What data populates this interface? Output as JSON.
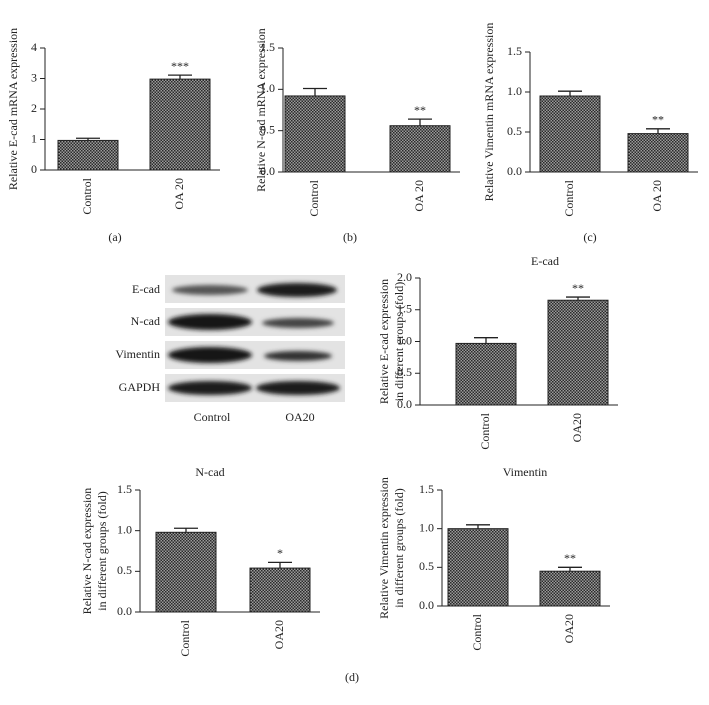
{
  "chart_data": [
    {
      "type": "bar",
      "panel_label": "(a)",
      "ylabel": [
        "Relative E-cad mRNA expression"
      ],
      "categories": [
        "Control",
        "OA 20"
      ],
      "values": [
        0.97,
        2.98
      ],
      "errors": [
        0.07,
        0.13
      ],
      "annotations": [
        null,
        "***"
      ],
      "ylim": [
        0,
        4
      ],
      "yticks": [
        0,
        1,
        2,
        3,
        4
      ]
    },
    {
      "type": "bar",
      "panel_label": "(b)",
      "ylabel": [
        "Relative N-cad mRNA expression"
      ],
      "categories": [
        "Control",
        "OA 20"
      ],
      "values": [
        0.92,
        0.56
      ],
      "errors": [
        0.09,
        0.08
      ],
      "annotations": [
        null,
        "**"
      ],
      "ylim": [
        0,
        1.5
      ],
      "yticks": [
        {
          "value": 0,
          "label": "0.0"
        },
        0.5,
        {
          "value": 1,
          "label": "1.0"
        },
        1.5
      ]
    },
    {
      "type": "bar",
      "panel_label": "(c)",
      "ylabel": [
        "Relative Vimentin mRNA expression"
      ],
      "categories": [
        "Control",
        "OA 20"
      ],
      "values": [
        0.95,
        0.48
      ],
      "errors": [
        0.06,
        0.06
      ],
      "annotations": [
        null,
        "**"
      ],
      "ylim": [
        0,
        1.5
      ],
      "yticks": [
        {
          "value": 0,
          "label": "0.0"
        },
        0.5,
        {
          "value": 1,
          "label": "1.0"
        },
        1.5
      ]
    },
    {
      "type": "bar",
      "title": "E-cad",
      "ylabel": [
        "Relative E-cad expression",
        "in different groups (fold)"
      ],
      "categories": [
        "Control",
        "OA20"
      ],
      "values": [
        0.97,
        1.65
      ],
      "errors": [
        0.09,
        0.05
      ],
      "annotations": [
        null,
        "**"
      ],
      "ylim": [
        0,
        2
      ],
      "yticks": [
        {
          "value": 0,
          "label": "0.0"
        },
        0.5,
        {
          "value": 1,
          "label": "1.0"
        },
        1.5,
        {
          "value": 2,
          "label": "2.0"
        }
      ]
    },
    {
      "type": "bar",
      "title": "N-cad",
      "ylabel": [
        "Relative N-cad expression",
        "in different groups (fold)"
      ],
      "categories": [
        "Control",
        "OA20"
      ],
      "values": [
        0.98,
        0.54
      ],
      "errors": [
        0.05,
        0.07
      ],
      "annotations": [
        null,
        "*"
      ],
      "ylim": [
        0,
        1.5
      ],
      "yticks": [
        {
          "value": 0,
          "label": "0.0"
        },
        0.5,
        {
          "value": 1,
          "label": "1.0"
        },
        1.5
      ]
    },
    {
      "type": "bar",
      "title": "Vimentin",
      "ylabel": [
        "Relative Vimentin expression",
        "in different groups (fold)"
      ],
      "categories": [
        "Control",
        "OA20"
      ],
      "values": [
        1.0,
        0.45
      ],
      "errors": [
        0.05,
        0.05
      ],
      "annotations": [
        null,
        "**"
      ],
      "ylim": [
        0,
        1.5
      ],
      "yticks": [
        {
          "value": 0,
          "label": "0.0"
        },
        0.5,
        {
          "value": 1,
          "label": "1.0"
        },
        1.5
      ]
    }
  ],
  "figure_label": "(d)",
  "blot": {
    "rows": [
      "E-cad",
      "N-cad",
      "Vimentin",
      "GAPDH"
    ],
    "columns": [
      "Control",
      "OA20"
    ]
  }
}
